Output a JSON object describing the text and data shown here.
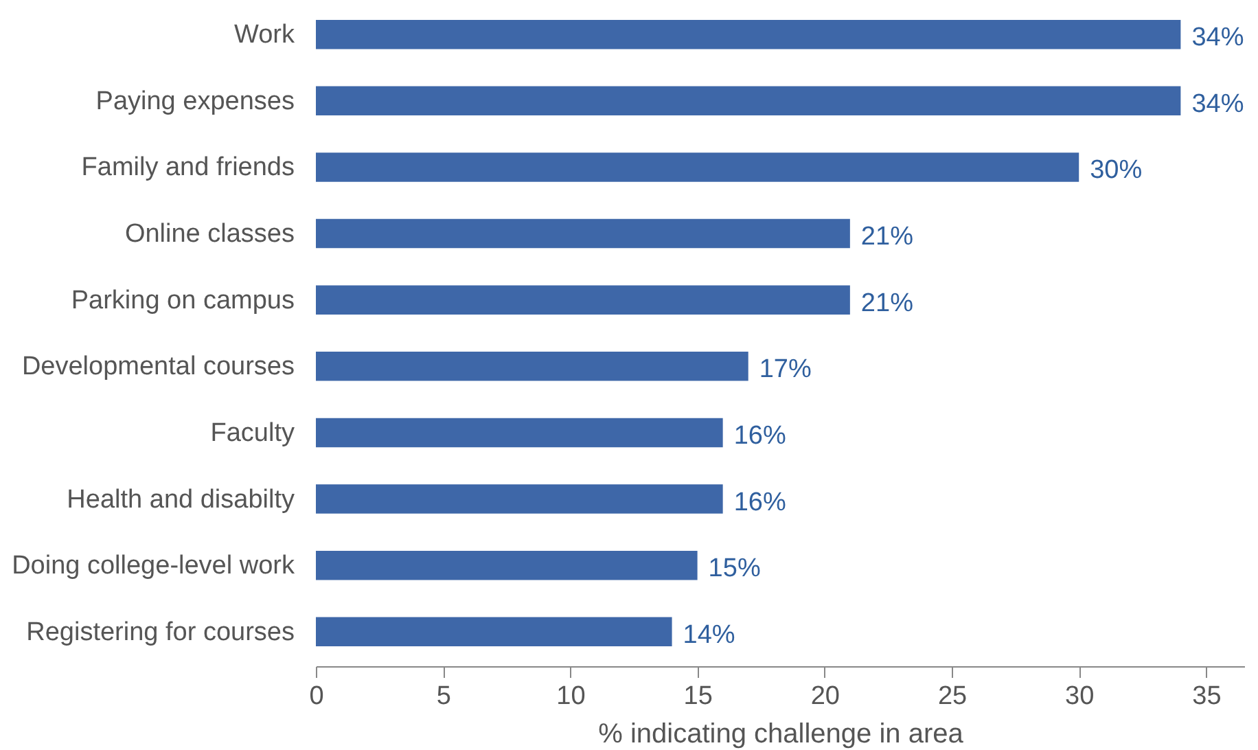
{
  "chart_data": {
    "type": "bar",
    "orientation": "horizontal",
    "xlabel": "% indicating challenge in area",
    "categories": [
      "Work",
      "Paying expenses",
      "Family and friends",
      "Online classes",
      "Parking on campus",
      "Developmental courses",
      "Faculty",
      "Health and disabilty",
      "Doing college-level work",
      "Registering for courses"
    ],
    "values": [
      34,
      34,
      30,
      21,
      21,
      17,
      16,
      16,
      15,
      14
    ],
    "value_labels": [
      "34%",
      "34%",
      "30%",
      "21%",
      "21%",
      "17%",
      "16%",
      "16%",
      "15%",
      "14%"
    ],
    "color": "#3e67a8",
    "xlim": [
      0,
      36.5
    ],
    "xticks": [
      0,
      5,
      10,
      15,
      20,
      25,
      30,
      35
    ],
    "grid": false
  }
}
